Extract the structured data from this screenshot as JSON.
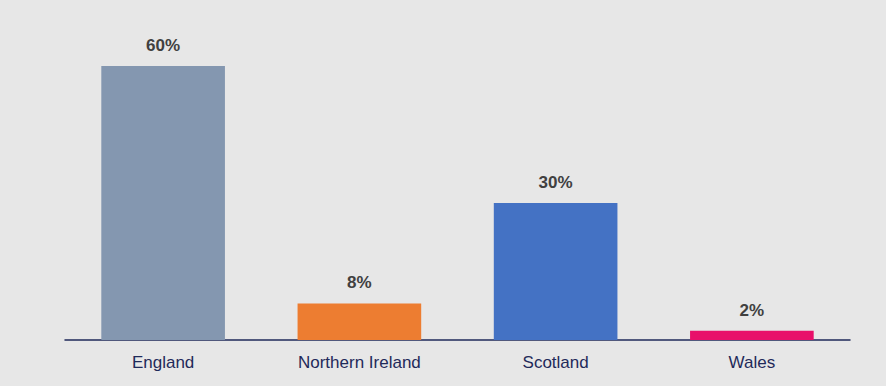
{
  "chart_data": {
    "type": "bar",
    "categories": [
      "England",
      "Northern Ireland",
      "Scotland",
      "Wales"
    ],
    "values": [
      60,
      8,
      30,
      2
    ],
    "value_labels": [
      "60%",
      "8%",
      "30%",
      "2%"
    ],
    "colors": [
      "#8497b0",
      "#ed7d31",
      "#4472c4",
      "#e8106a"
    ],
    "ylim": [
      0,
      60
    ],
    "yticks": [
      0,
      60
    ],
    "grid": false,
    "data_labels": true,
    "tick_labels": "x"
  }
}
